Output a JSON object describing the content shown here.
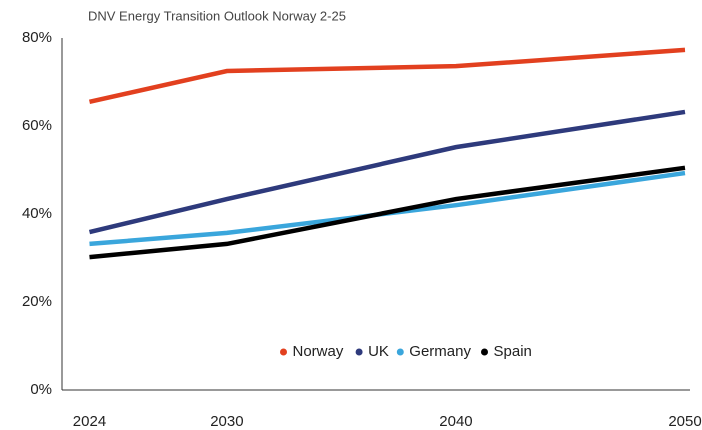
{
  "chart_data": {
    "type": "line",
    "title": "DNV Energy Transition Outlook Norway 2-25",
    "x": [
      2024,
      2030,
      2040,
      2050
    ],
    "series": [
      {
        "name": "Norway",
        "color": "#e2401f",
        "values": [
          65.5,
          72.5,
          73.6,
          77.3
        ]
      },
      {
        "name": "UK",
        "color": "#2e3a7c",
        "values": [
          35.9,
          43.4,
          55.2,
          63.2
        ]
      },
      {
        "name": "Germany",
        "color": "#3aa6dc",
        "values": [
          33.2,
          35.7,
          42.0,
          49.3
        ]
      },
      {
        "name": "Spain",
        "color": "#000000",
        "values": [
          30.2,
          33.2,
          43.4,
          50.5
        ]
      }
    ],
    "xlim": [
      2022.8,
      2050
    ],
    "xticks": [
      2024,
      2030,
      2040,
      2050
    ],
    "ylim": [
      0,
      80
    ],
    "yticks": [
      {
        "value": 0,
        "label": "0%"
      },
      {
        "value": 20,
        "label": "20%"
      },
      {
        "value": 40,
        "label": "40%"
      },
      {
        "value": 60,
        "label": "60%"
      },
      {
        "value": 80,
        "label": "80%"
      }
    ],
    "grid": false,
    "legend": "lower center"
  }
}
